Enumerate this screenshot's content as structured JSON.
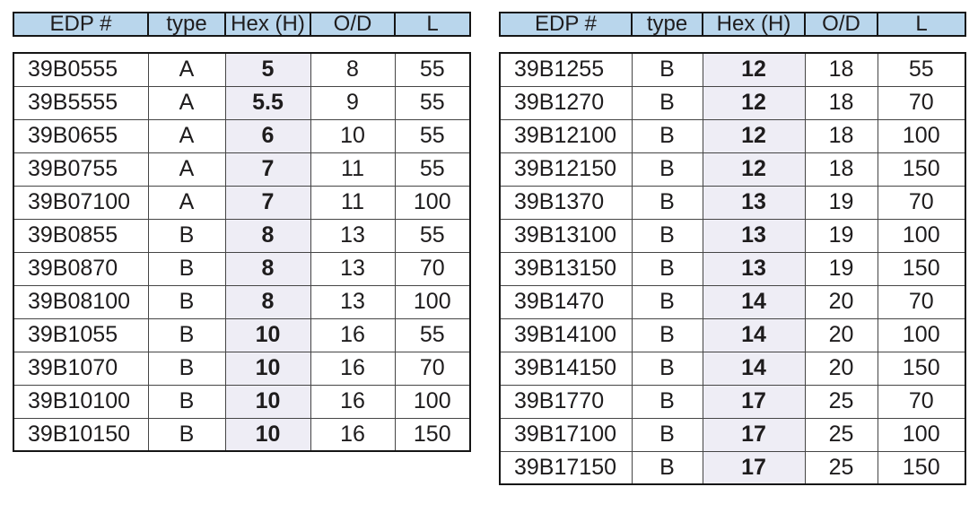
{
  "colors": {
    "header_bg": "#b9d6ec",
    "hex_column_bg": "#eeedf5",
    "outer_border": "#151515",
    "inner_border": "#454545",
    "text": "#1e1c1d"
  },
  "columns": [
    {
      "key": "edp",
      "label": "EDP #"
    },
    {
      "key": "type",
      "label": "type"
    },
    {
      "key": "hex",
      "label": "Hex (H)"
    },
    {
      "key": "od",
      "label": "O/D"
    },
    {
      "key": "l",
      "label": "L"
    }
  ],
  "tables": [
    {
      "id": "left",
      "rows": [
        [
          "39B0555",
          "A",
          "5",
          "8",
          "55"
        ],
        [
          "39B5555",
          "A",
          "5.5",
          "9",
          "55"
        ],
        [
          "39B0655",
          "A",
          "6",
          "10",
          "55"
        ],
        [
          "39B0755",
          "A",
          "7",
          "11",
          "55"
        ],
        [
          "39B07100",
          "A",
          "7",
          "11",
          "100"
        ],
        [
          "39B0855",
          "B",
          "8",
          "13",
          "55"
        ],
        [
          "39B0870",
          "B",
          "8",
          "13",
          "70"
        ],
        [
          "39B08100",
          "B",
          "8",
          "13",
          "100"
        ],
        [
          "39B1055",
          "B",
          "10",
          "16",
          "55"
        ],
        [
          "39B1070",
          "B",
          "10",
          "16",
          "70"
        ],
        [
          "39B10100",
          "B",
          "10",
          "16",
          "100"
        ],
        [
          "39B10150",
          "B",
          "10",
          "16",
          "150"
        ]
      ]
    },
    {
      "id": "right",
      "rows": [
        [
          "39B1255",
          "B",
          "12",
          "18",
          "55"
        ],
        [
          "39B1270",
          "B",
          "12",
          "18",
          "70"
        ],
        [
          "39B12100",
          "B",
          "12",
          "18",
          "100"
        ],
        [
          "39B12150",
          "B",
          "12",
          "18",
          "150"
        ],
        [
          "39B1370",
          "B",
          "13",
          "19",
          "70"
        ],
        [
          "39B13100",
          "B",
          "13",
          "19",
          "100"
        ],
        [
          "39B13150",
          "B",
          "13",
          "19",
          "150"
        ],
        [
          "39B1470",
          "B",
          "14",
          "20",
          "70"
        ],
        [
          "39B14100",
          "B",
          "14",
          "20",
          "100"
        ],
        [
          "39B14150",
          "B",
          "14",
          "20",
          "150"
        ],
        [
          "39B1770",
          "B",
          "17",
          "25",
          "70"
        ],
        [
          "39B17100",
          "B",
          "17",
          "25",
          "100"
        ],
        [
          "39B17150",
          "B",
          "17",
          "25",
          "150"
        ]
      ]
    }
  ],
  "chart_data": {
    "type": "table",
    "title": "",
    "columns": [
      "EDP #",
      "type",
      "Hex (H)",
      "O/D",
      "L"
    ],
    "note": "two side-by-side part-specification tables; Hex (H) column shaded and bold"
  }
}
